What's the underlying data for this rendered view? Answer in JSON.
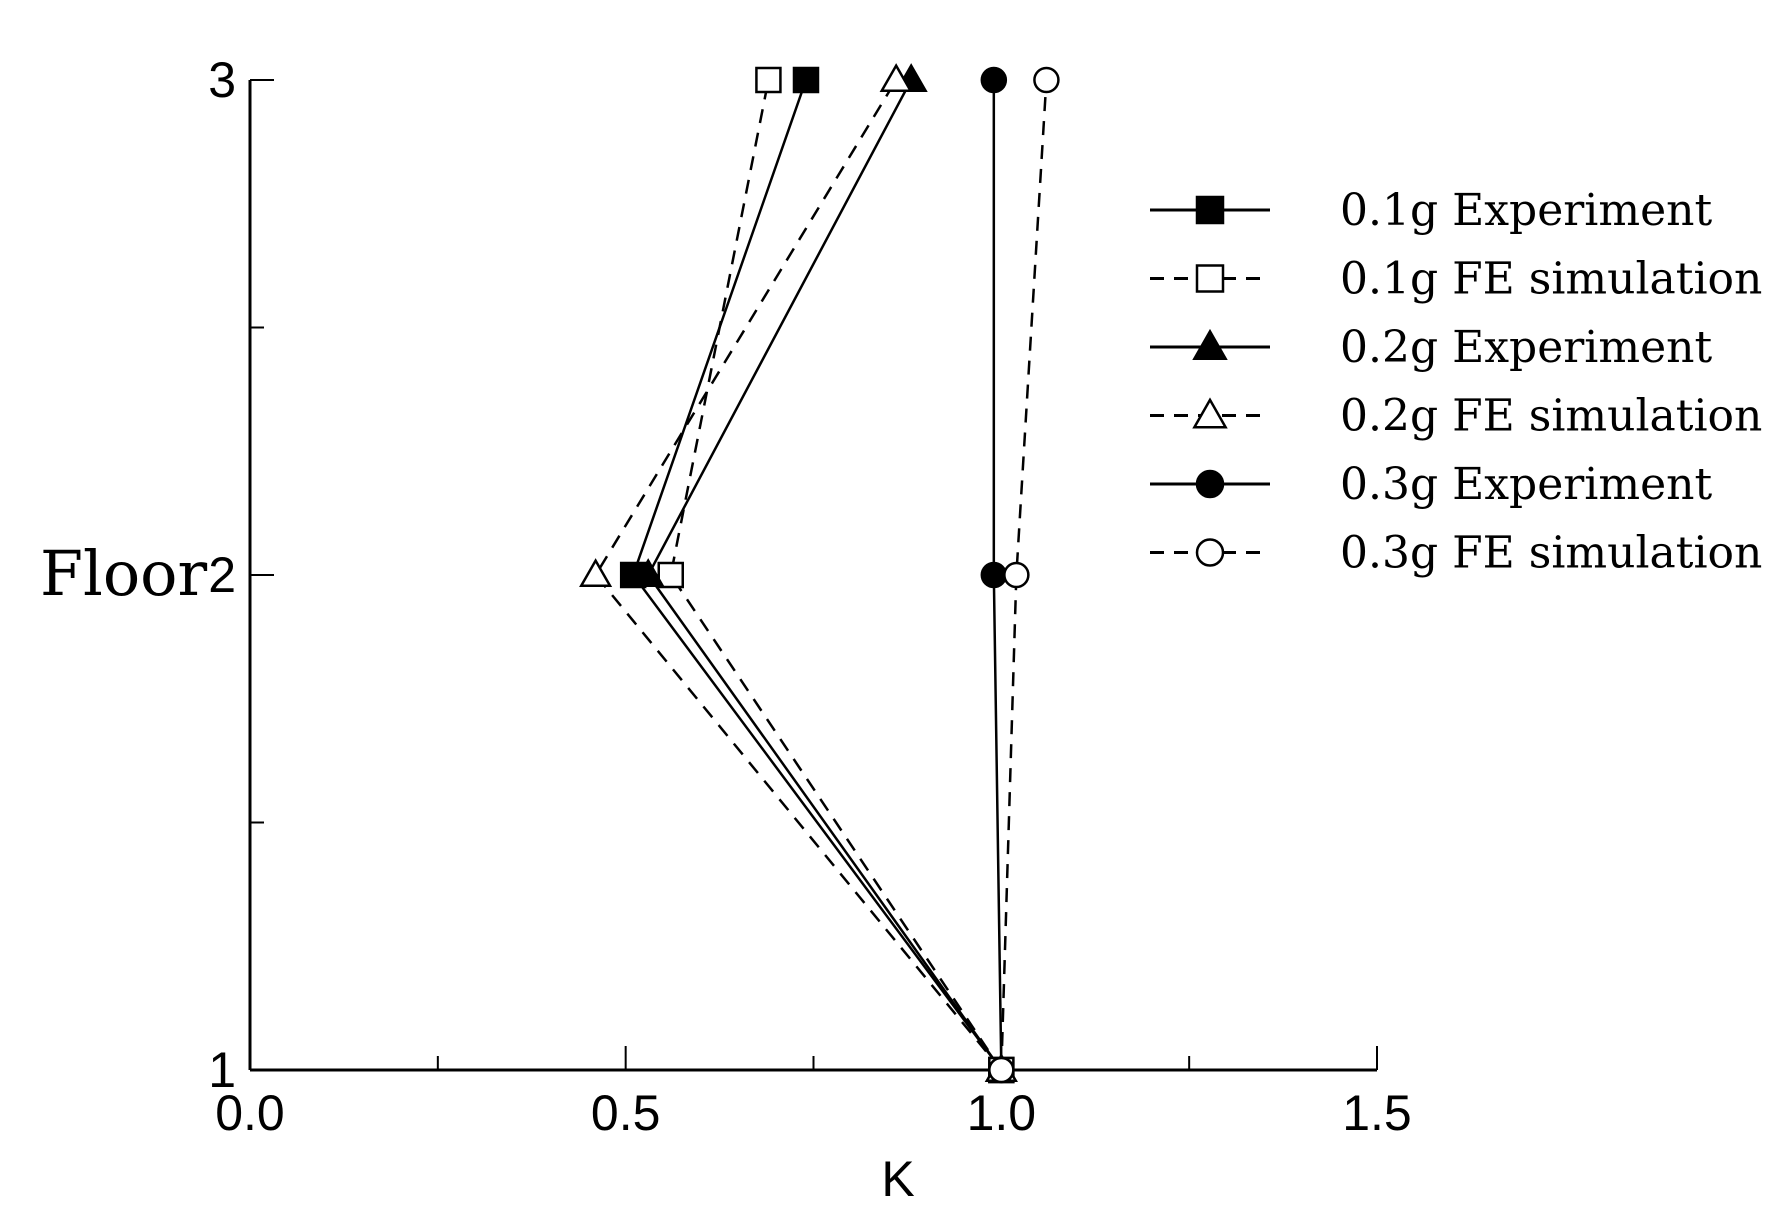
{
  "chart_data": {
    "type": "line",
    "title": "",
    "xlabel": "K",
    "ylabel": "Floor",
    "xlim": [
      0.0,
      1.5
    ],
    "ylim": [
      1,
      3
    ],
    "x_ticks": [
      "0.0",
      "0.5",
      "1.0",
      "1.5"
    ],
    "y_ticks": [
      "1",
      "2",
      "3"
    ],
    "grid": false,
    "legend_position": "top-right",
    "series": [
      {
        "name": "0.1g Experiment",
        "line": "solid",
        "marker": "square",
        "filled": true,
        "points": [
          {
            "k": 1.0,
            "floor": 1
          },
          {
            "k": 0.51,
            "floor": 2
          },
          {
            "k": 0.74,
            "floor": 3
          }
        ]
      },
      {
        "name": "0.1g FE simulation",
        "line": "dashed",
        "marker": "square",
        "filled": false,
        "points": [
          {
            "k": 1.0,
            "floor": 1
          },
          {
            "k": 0.56,
            "floor": 2
          },
          {
            "k": 0.69,
            "floor": 3
          }
        ]
      },
      {
        "name": "0.2g Experiment",
        "line": "solid",
        "marker": "triangle",
        "filled": true,
        "points": [
          {
            "k": 1.0,
            "floor": 1
          },
          {
            "k": 0.53,
            "floor": 2
          },
          {
            "k": 0.88,
            "floor": 3
          }
        ]
      },
      {
        "name": "0.2g FE simulation",
        "line": "dashed",
        "marker": "triangle",
        "filled": false,
        "points": [
          {
            "k": 1.0,
            "floor": 1
          },
          {
            "k": 0.46,
            "floor": 2
          },
          {
            "k": 0.86,
            "floor": 3
          }
        ]
      },
      {
        "name": "0.3g Experiment",
        "line": "solid",
        "marker": "circle",
        "filled": true,
        "points": [
          {
            "k": 1.0,
            "floor": 1
          },
          {
            "k": 0.99,
            "floor": 2
          },
          {
            "k": 0.99,
            "floor": 3
          }
        ]
      },
      {
        "name": "0.3g FE simulation",
        "line": "dashed",
        "marker": "circle",
        "filled": false,
        "points": [
          {
            "k": 1.0,
            "floor": 1
          },
          {
            "k": 1.02,
            "floor": 2
          },
          {
            "k": 1.06,
            "floor": 3
          }
        ]
      }
    ]
  }
}
